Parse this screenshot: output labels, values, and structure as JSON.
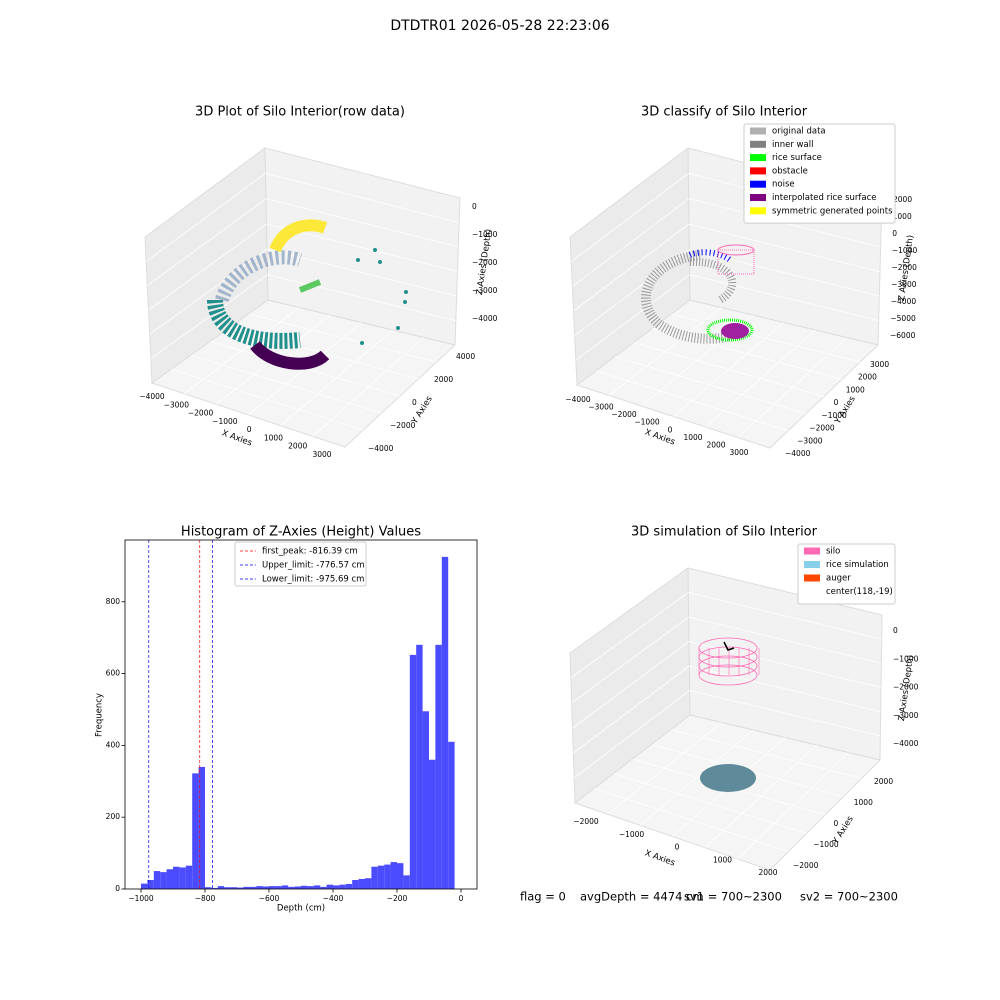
{
  "title": "DTDTR01 2026-05-28 22:23:06",
  "chart_data": [
    {
      "type": "scatter3d",
      "title": "3D Plot of Silo Interior(row data)",
      "xlabel": "X Axies",
      "ylabel": "Y Axies",
      "zlabel": "Z Axies (Depth)",
      "xticks": [
        {
          "value": -4000,
          "label": "−4000"
        },
        {
          "value": -3000,
          "label": "−3000"
        },
        {
          "value": -2000,
          "label": "−2000"
        },
        {
          "value": -1000,
          "label": "−1000"
        },
        0,
        1000,
        2000,
        3000
      ],
      "yticks": [
        {
          "value": -4000,
          "label": "−4000"
        },
        {
          "value": -2000,
          "label": "−2000"
        },
        0,
        2000,
        4000
      ],
      "zticks": [
        0,
        {
          "value": -1000,
          "label": "−1000"
        },
        {
          "value": -2000,
          "label": "−2000"
        },
        {
          "value": -3000,
          "label": "−3000"
        },
        {
          "value": -4000,
          "label": "−4000"
        }
      ]
    },
    {
      "type": "scatter3d",
      "title": "3D classify of Silo Interior",
      "xlabel": "X Axies",
      "ylabel": "Y Axies",
      "zlabel": "Z Axies (Depth)",
      "xticks": [
        {
          "value": -4000,
          "label": "−4000"
        },
        {
          "value": -3000,
          "label": "−3000"
        },
        {
          "value": -2000,
          "label": "−2000"
        },
        {
          "value": -1000,
          "label": "−1000"
        },
        0,
        1000,
        2000,
        3000
      ],
      "yticks": [
        {
          "value": -4000,
          "label": "−4000"
        },
        {
          "value": -3000,
          "label": "−3000"
        },
        {
          "value": -2000,
          "label": "−2000"
        },
        {
          "value": -1000,
          "label": "−1000"
        },
        0,
        1000,
        2000,
        3000
      ],
      "zticks": [
        2000,
        1000,
        0,
        {
          "value": -1000,
          "label": "−1000"
        },
        {
          "value": -2000,
          "label": "−2000"
        },
        {
          "value": -3000,
          "label": "−3000"
        },
        {
          "value": -4000,
          "label": "−4000"
        },
        {
          "value": -5000,
          "label": "−5000"
        },
        {
          "value": -6000,
          "label": "−6000"
        }
      ],
      "legend": [
        {
          "name": "original data",
          "color": "#b0b0b0"
        },
        {
          "name": "inner wall",
          "color": "#808080"
        },
        {
          "name": "rice surface",
          "color": "#00ff00"
        },
        {
          "name": "obstacle",
          "color": "#ff0000"
        },
        {
          "name": "noise",
          "color": "#0000ff"
        },
        {
          "name": "interpolated rice surface",
          "color": "#800080"
        },
        {
          "name": "symmetric generated points",
          "color": "#ffff00"
        }
      ]
    },
    {
      "type": "histogram",
      "title": "Histogram of Z-Axies (Height) Values",
      "xlabel": "Depth (cm)",
      "ylabel": "Frequency",
      "color": "#4b4bff",
      "bins": [
        -1000,
        -980,
        -960,
        -940,
        -920,
        -900,
        -880,
        -860,
        -840,
        -820,
        -800,
        -780,
        -760,
        -740,
        -720,
        -700,
        -680,
        -660,
        -640,
        -620,
        -600,
        -580,
        -560,
        -540,
        -520,
        -500,
        -480,
        -460,
        -440,
        -420,
        -400,
        -380,
        -360,
        -340,
        -320,
        -300,
        -280,
        -260,
        -240,
        -220,
        -200,
        -180,
        -160,
        -140,
        -120,
        -100,
        -80,
        -60,
        -40,
        -20,
        0
      ],
      "counts": [
        15,
        25,
        50,
        47,
        55,
        62,
        60,
        65,
        322,
        340,
        5,
        3,
        8,
        5,
        5,
        4,
        6,
        6,
        8,
        7,
        8,
        8,
        10,
        6,
        7,
        9,
        8,
        10,
        6,
        12,
        10,
        12,
        14,
        25,
        28,
        30,
        62,
        65,
        68,
        75,
        72,
        38,
        652,
        680,
        495,
        360,
        680,
        925,
        410,
        0
      ],
      "vlines": [
        {
          "name": "first_peak: -816.39 cm",
          "value": -816.39,
          "color": "#ff0000"
        },
        {
          "name": "Upper_limit: -776.57 cm",
          "value": -776.57,
          "color": "#0000ff"
        },
        {
          "name": "Lower_limit: -975.69 cm",
          "value": -975.69,
          "color": "#0000ff"
        }
      ],
      "xlim": [
        -1050,
        50
      ],
      "ylim": [
        0,
        972
      ],
      "xticks": [
        {
          "value": -1000,
          "label": "−1000"
        },
        {
          "value": -800,
          "label": "−800"
        },
        {
          "value": -600,
          "label": "−600"
        },
        {
          "value": -400,
          "label": "−400"
        },
        {
          "value": -200,
          "label": "−200"
        },
        0
      ],
      "yticks": [
        0,
        200,
        400,
        600,
        800
      ]
    },
    {
      "type": "scatter3d",
      "title": "3D simulation of Silo Interior",
      "xlabel": "X Axies",
      "ylabel": "Y Axies",
      "zlabel": "Z Axies (Depth)",
      "xticks": [
        {
          "value": -2000,
          "label": "−2000"
        },
        {
          "value": -1000,
          "label": "−1000"
        },
        0,
        1000,
        2000
      ],
      "yticks": [
        {
          "value": -2000,
          "label": "−2000"
        },
        {
          "value": -1000,
          "label": "−1000"
        },
        0,
        1000,
        2000
      ],
      "zticks": [
        0,
        {
          "value": -1000,
          "label": "−1000"
        },
        {
          "value": -2000,
          "label": "−2000"
        },
        {
          "value": -3000,
          "label": "−3000"
        },
        {
          "value": -4000,
          "label": "−4000"
        }
      ],
      "legend": [
        {
          "name": "silo",
          "color": "#ff69b4"
        },
        {
          "name": "rice simulation",
          "color": "#87ceeb"
        },
        {
          "name": "auger",
          "color": "#ff4500"
        },
        {
          "name": "center(118,-19)"
        }
      ]
    }
  ],
  "footer": [
    "flag = 0",
    "avgDepth = 4474 cm",
    "sv1 = 700~2300",
    "sv2 = 700~2300"
  ]
}
